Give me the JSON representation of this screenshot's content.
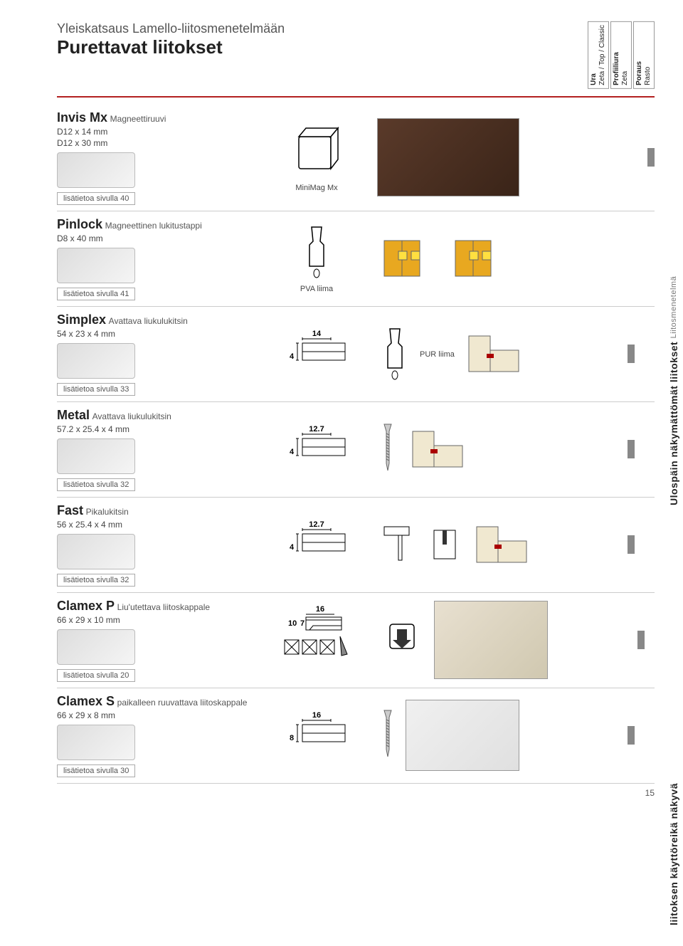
{
  "header": {
    "subtitle": "Yleiskatsaus Lamello-liitosmenetelmään",
    "title": "Purettavat liitokset",
    "cols": [
      {
        "main": "Ura",
        "sub": "Zeta / Top / Classic"
      },
      {
        "main": "Profiiliura",
        "sub": "Zeta"
      },
      {
        "main": "Poraus",
        "sub": "Rasto"
      }
    ]
  },
  "side1": {
    "main": "Ulospäin näkymättömät liitokset",
    "sub": "Liitosmenetelmä"
  },
  "side2": {
    "main": "liitoksen käyttöreikä näkyvä"
  },
  "products": [
    {
      "name": "Invis Mx",
      "desc": "Magneettiruuvi",
      "sizes": [
        "D12 x 14 mm",
        "D12 x 30 mm"
      ],
      "tag": "lisätietoa sivulla 40",
      "mid": {
        "caption": "MiniMag Mx",
        "svg": "cube"
      },
      "marks": [
        false,
        false,
        true
      ]
    },
    {
      "name": "Pinlock",
      "desc": "Magneettinen lukitustappi",
      "sizes": [
        "D8 x 40 mm"
      ],
      "tag": "lisätietoa sivulla 41",
      "mid": {
        "caption": "PVA liima",
        "svg": "glue"
      },
      "marks": [
        false,
        false,
        false
      ]
    },
    {
      "name": "Simplex",
      "desc": "Avattava liukulukitsin",
      "sizes": [
        "54 x 23 x 4 mm"
      ],
      "tag": "lisätietoa sivulla 33",
      "mid": {
        "dims": [
          "14",
          "4"
        ],
        "caption_right": "PUR liima",
        "svg": "profile"
      },
      "marks": [
        true,
        false,
        false
      ]
    },
    {
      "name": "Metal",
      "desc": "Avattava liukulukitsin",
      "sizes": [
        "57.2 x 25.4 x 4 mm"
      ],
      "tag": "lisätietoa sivulla 32",
      "mid": {
        "dims": [
          "12.7",
          "4"
        ],
        "svg": "profile"
      },
      "marks": [
        true,
        false,
        false
      ]
    },
    {
      "name": "Fast",
      "desc": "Pikalukitsin",
      "sizes": [
        "56 x 25.4 x 4 mm"
      ],
      "tag": "lisätietoa sivulla 32",
      "mid": {
        "dims": [
          "12.7",
          "4"
        ],
        "svg": "profile"
      },
      "marks": [
        true,
        false,
        false
      ]
    },
    {
      "name": "Clamex P",
      "desc": "Liu'utettava liitoskappale",
      "sizes": [
        "66 x 29 x 10 mm"
      ],
      "tag": "lisätietoa sivulla 20",
      "mid": {
        "dims": [
          "16",
          "10",
          "7"
        ],
        "svg": "clamex"
      },
      "marks": [
        false,
        true,
        false
      ]
    },
    {
      "name": "Clamex S",
      "desc": "paikalleen ruuvattava liitoskappale",
      "sizes": [
        "66 x 29 x 8 mm"
      ],
      "tag": "lisätietoa sivulla 30",
      "mid": {
        "dims": [
          "16",
          "8"
        ],
        "svg": "profile"
      },
      "marks": [
        true,
        false,
        false
      ]
    }
  ],
  "pagenum": "15",
  "colors": {
    "divider": "#b32020",
    "wood": "#e8a820",
    "cream": "#f0e8d0"
  }
}
